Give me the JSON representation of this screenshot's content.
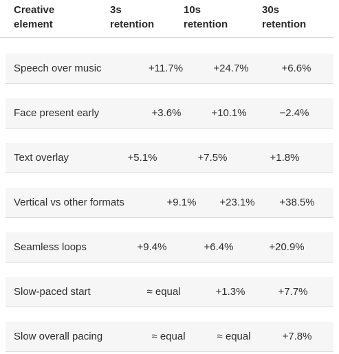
{
  "table": {
    "headers": [
      {
        "line1": "Creative",
        "line2": "element"
      },
      {
        "line1": "3s",
        "line2": "retention"
      },
      {
        "line1": "10s",
        "line2": "retention"
      },
      {
        "line1": "30s",
        "line2": "retention"
      }
    ],
    "rows": [
      {
        "label": "Speech over music",
        "v3s": "+11.7%",
        "v10s": "+24.7%",
        "v30s": "+6.6%"
      },
      {
        "label": "Face present early",
        "v3s": "+3.6%",
        "v10s": "+10.1%",
        "v30s": "−2.4%"
      },
      {
        "label": "Text overlay",
        "v3s": "+5.1%",
        "v10s": "+7.5%",
        "v30s": "+1.8%"
      },
      {
        "label": "Vertical vs other formats",
        "v3s": "+9.1%",
        "v10s": "+23.1%",
        "v30s": "+38.5%"
      },
      {
        "label": "Seamless loops",
        "v3s": "+9.4%",
        "v10s": "+6.4%",
        "v30s": "+20.9%"
      },
      {
        "label": "Slow-paced start",
        "v3s": "≈ equal",
        "v10s": "+1.3%",
        "v30s": "+7.7%"
      },
      {
        "label": "Slow overall pacing",
        "v3s": "≈ equal",
        "v10s": "≈ equal",
        "v30s": "+7.8%"
      }
    ]
  }
}
